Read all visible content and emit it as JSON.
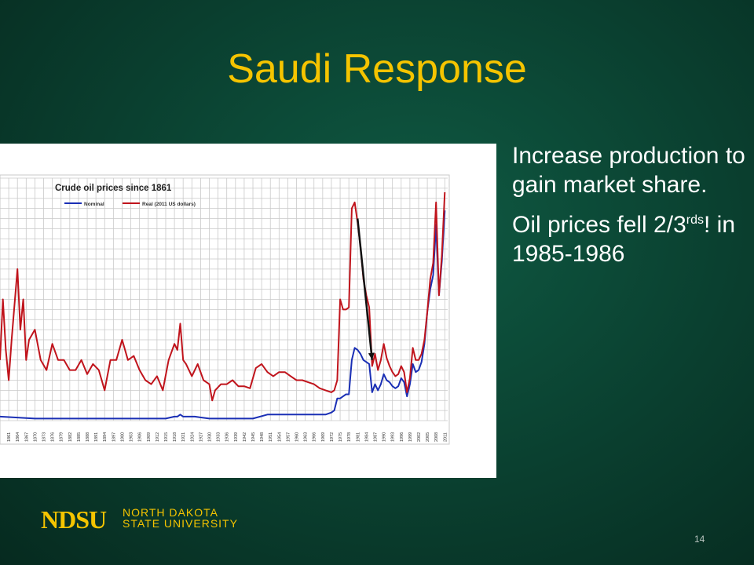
{
  "slide": {
    "title": "Saudi Response",
    "bullets": [
      {
        "text": "Increase production to gain market share."
      },
      {
        "pre": "Oil prices fell 2/3",
        "sup": "rds",
        "post": "! in 1985-1986"
      }
    ],
    "logo": {
      "mark": "NDSU",
      "line1": "NORTH DAKOTA",
      "line2": "STATE UNIVERSITY"
    },
    "page_number": "14"
  },
  "colors": {
    "title": "#f5c400",
    "nominal": "#1a2fb5",
    "real": "#c0141c",
    "arrow": "#111111"
  },
  "chart_data": {
    "type": "line",
    "title": "Crude oil prices since 1861",
    "xlim": [
      1858,
      2012
    ],
    "ylim": [
      0,
      120
    ],
    "grid": true,
    "legend": "top-left",
    "xticks": [
      1861,
      1864,
      1867,
      1870,
      1873,
      1876,
      1879,
      1882,
      1885,
      1888,
      1891,
      1894,
      1897,
      1900,
      1903,
      1906,
      1909,
      1912,
      1915,
      1918,
      1921,
      1924,
      1927,
      1930,
      1933,
      1936,
      1939,
      1942,
      1945,
      1948,
      1951,
      1954,
      1957,
      1960,
      1963,
      1966,
      1969,
      1972,
      1975,
      1978,
      1981,
      1984,
      1987,
      1990,
      1993,
      1996,
      1999,
      2002,
      2005,
      2008,
      2011
    ],
    "series": [
      {
        "name": "Nominal",
        "x": [
          1858,
          1870,
          1880,
          1890,
          1900,
          1910,
          1915,
          1918,
          1919,
          1920,
          1921,
          1925,
          1930,
          1931,
          1935,
          1940,
          1945,
          1950,
          1955,
          1960,
          1965,
          1970,
          1972,
          1973,
          1974,
          1975,
          1976,
          1977,
          1978,
          1979,
          1980,
          1981,
          1982,
          1983,
          1984,
          1985,
          1986,
          1987,
          1988,
          1989,
          1990,
          1991,
          1992,
          1993,
          1994,
          1995,
          1996,
          1997,
          1998,
          1999,
          2000,
          2001,
          2002,
          2003,
          2004,
          2005,
          2006,
          2007,
          2008,
          2009,
          2010,
          2011
        ],
        "y": [
          2,
          1,
          1,
          1,
          1,
          1,
          1,
          2,
          2,
          3,
          2,
          2,
          1,
          1,
          1,
          1,
          1,
          3,
          3,
          3,
          3,
          3,
          4,
          5,
          11,
          11,
          12,
          13,
          13,
          30,
          36,
          35,
          33,
          30,
          29,
          28,
          14,
          18,
          15,
          18,
          23,
          20,
          19,
          17,
          16,
          17,
          21,
          19,
          12,
          18,
          28,
          24,
          25,
          29,
          38,
          54,
          65,
          72,
          97,
          62,
          79,
          104
        ]
      },
      {
        "name": "Real (2011 US dollars)",
        "x": [
          1858,
          1859,
          1860,
          1861,
          1862,
          1864,
          1865,
          1866,
          1867,
          1868,
          1870,
          1872,
          1874,
          1876,
          1878,
          1880,
          1882,
          1884,
          1886,
          1888,
          1890,
          1892,
          1894,
          1896,
          1898,
          1900,
          1902,
          1904,
          1906,
          1908,
          1910,
          1912,
          1914,
          1916,
          1918,
          1919,
          1920,
          1921,
          1922,
          1924,
          1926,
          1928,
          1930,
          1931,
          1932,
          1934,
          1936,
          1938,
          1940,
          1942,
          1944,
          1946,
          1948,
          1950,
          1952,
          1954,
          1956,
          1958,
          1960,
          1962,
          1964,
          1966,
          1968,
          1970,
          1972,
          1973,
          1974,
          1975,
          1976,
          1977,
          1978,
          1979,
          1980,
          1981,
          1982,
          1983,
          1984,
          1985,
          1986,
          1987,
          1988,
          1989,
          1990,
          1991,
          1992,
          1993,
          1994,
          1995,
          1996,
          1997,
          1998,
          1999,
          2000,
          2001,
          2002,
          2003,
          2004,
          2005,
          2006,
          2007,
          2008,
          2009,
          2010,
          2011
        ],
        "y": [
          30,
          60,
          35,
          20,
          40,
          75,
          45,
          60,
          30,
          40,
          45,
          30,
          25,
          38,
          30,
          30,
          25,
          25,
          30,
          23,
          28,
          25,
          15,
          30,
          30,
          40,
          30,
          32,
          25,
          20,
          18,
          22,
          15,
          30,
          38,
          35,
          48,
          30,
          28,
          22,
          28,
          20,
          18,
          10,
          15,
          18,
          18,
          20,
          17,
          17,
          16,
          26,
          28,
          24,
          22,
          24,
          24,
          22,
          20,
          20,
          19,
          18,
          16,
          15,
          14,
          15,
          20,
          60,
          55,
          55,
          56,
          105,
          108,
          98,
          86,
          70,
          62,
          56,
          27,
          33,
          25,
          30,
          38,
          31,
          27,
          24,
          22,
          23,
          27,
          24,
          14,
          21,
          36,
          30,
          30,
          33,
          40,
          54,
          70,
          78,
          108,
          62,
          82,
          113
        ]
      }
    ],
    "annotation": {
      "type": "arrow",
      "from": [
        1981,
        100
      ],
      "to": [
        1986,
        30
      ]
    }
  }
}
